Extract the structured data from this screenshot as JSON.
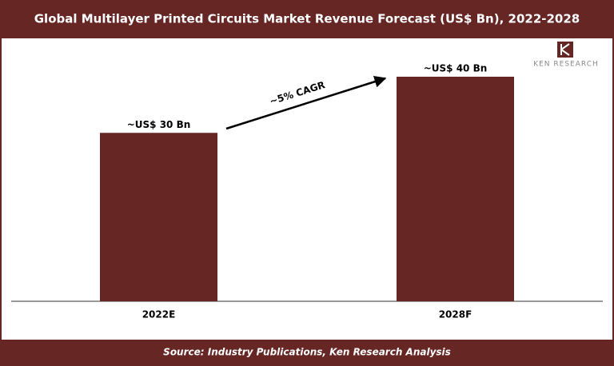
{
  "chart_data": {
    "type": "bar",
    "title": "Global Multilayer Printed Circuits Market Revenue Forecast (US$ Bn), 2022-2028",
    "categories": [
      "2022E",
      "2028F"
    ],
    "values": [
      30,
      40
    ],
    "value_labels": [
      "~US$ 30 Bn",
      "~US$ 40 Bn"
    ],
    "color": "#662624",
    "annotation": "~5% CAGR",
    "logo": "KEN RESEARCH",
    "source": "Source: Industry Publications, Ken Research Analysis"
  }
}
